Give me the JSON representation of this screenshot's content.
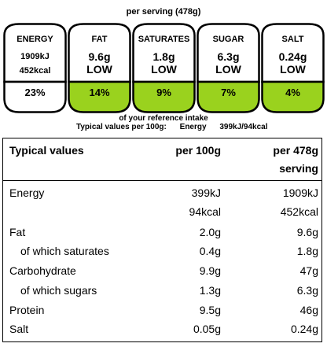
{
  "serving": "per serving  (478g)",
  "labels": [
    {
      "name": "ENERGY",
      "amount_kj": "1909kJ",
      "amount_kcal": "452kcal",
      "level": "",
      "percent": "23%",
      "color": "#ffffff"
    },
    {
      "name": "FAT",
      "amount": "9.6g",
      "level": "LOW",
      "percent": "14%",
      "color": "#9ad21e"
    },
    {
      "name": "SATURATES",
      "amount": "1.8g",
      "level": "LOW",
      "percent": "9%",
      "color": "#9ad21e"
    },
    {
      "name": "SUGAR",
      "amount": "6.3g",
      "level": "LOW",
      "percent": "7%",
      "color": "#9ad21e"
    },
    {
      "name": "SALT",
      "amount": "0.24g",
      "level": "LOW",
      "percent": "4%",
      "color": "#9ad21e"
    }
  ],
  "reference_intake": "of your reference intake",
  "typical_line": {
    "prefix": "Typical values per 100g:",
    "energy_label": "Energy",
    "energy_value": "399kJ/94kcal"
  },
  "table": {
    "headers": {
      "label": "Typical values",
      "col1": "per 100g",
      "col2_line1": "per 478g",
      "col2_line2": "serving"
    },
    "rows": [
      {
        "label": "Energy",
        "v1": "399kJ",
        "v2": "1909kJ"
      },
      {
        "label": "",
        "v1": "94kcal",
        "v2": "452kcal"
      },
      {
        "label": "Fat",
        "v1": "2.0g",
        "v2": "9.6g"
      },
      {
        "label": "of which saturates",
        "v1": "0.4g",
        "v2": "1.8g"
      },
      {
        "label": "Carbohydrate",
        "v1": "9.9g",
        "v2": "47g"
      },
      {
        "label": "of which sugars",
        "v1": "1.3g",
        "v2": "6.3g"
      },
      {
        "label": "Protein",
        "v1": "9.5g",
        "v2": "46g"
      },
      {
        "label": "Salt",
        "v1": "0.05g",
        "v2": "0.24g"
      }
    ]
  }
}
